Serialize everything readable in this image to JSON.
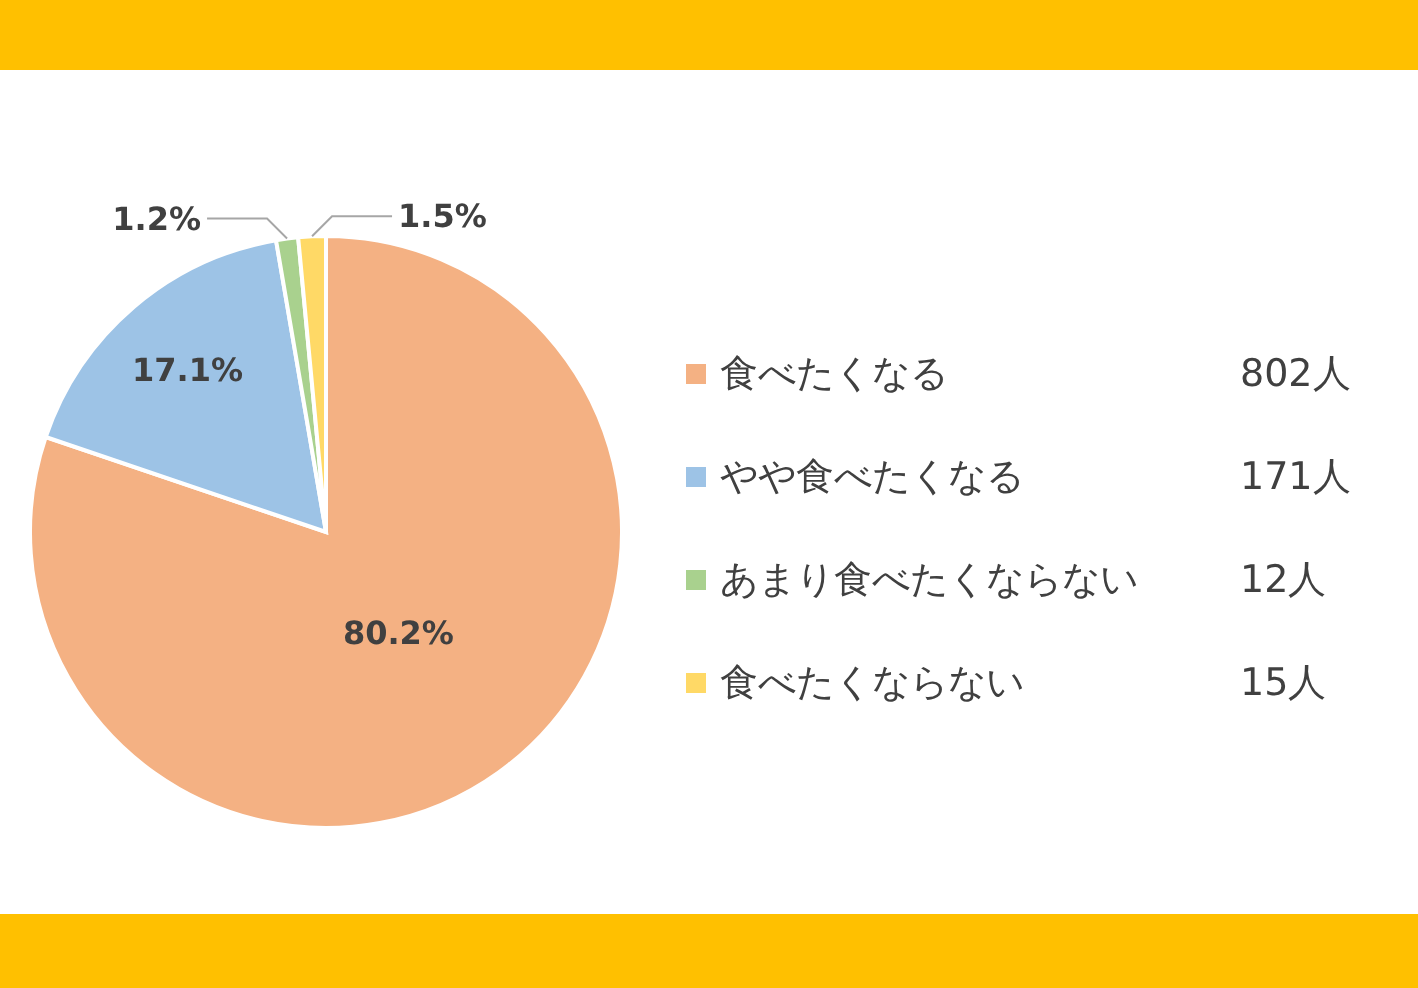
{
  "chart_data": {
    "type": "pie",
    "categories": [
      "食べたくなる",
      "やや食べたくなる",
      "あまり食べたくならない",
      "食べたくならない"
    ],
    "values": [
      80.2,
      17.1,
      1.2,
      1.5
    ],
    "value_labels": [
      "80.2%",
      "17.1%",
      "1.2%",
      "1.5%"
    ],
    "colors": [
      "#f4b183",
      "#9dc3e6",
      "#a9d18e",
      "#ffd966"
    ],
    "annotations": [
      "802人",
      "171人",
      "12人",
      "15人"
    ],
    "legend": "right"
  }
}
